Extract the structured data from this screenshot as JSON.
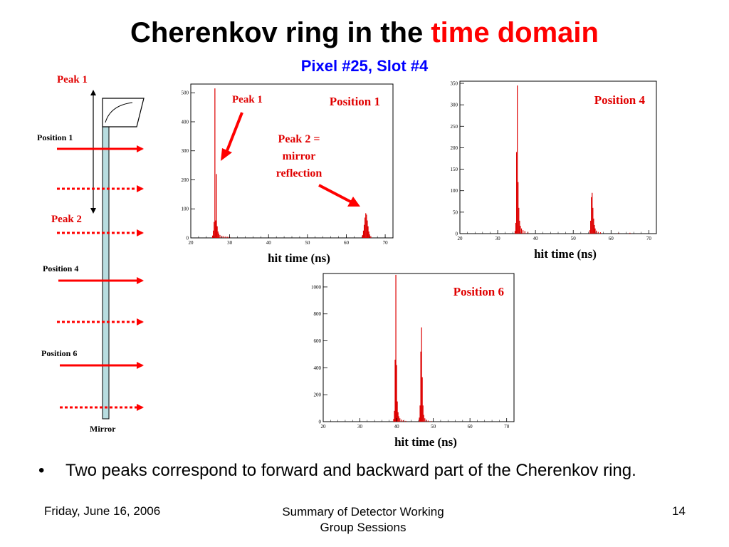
{
  "slide": {
    "title_main": "Cherenkov ring in the ",
    "title_highlight": "time domain",
    "subtitle": "Pixel #25, Slot #4",
    "bullet": "Two peaks correspond to forward and backward part of the Cherenkov ring.",
    "footer_date": "Friday, June 16, 2006",
    "footer_center_line1": "Summary of Detector Working",
    "footer_center_line2": "Group  Sessions",
    "page_number": "14"
  },
  "diagram": {
    "peak1_label": "Peak 1",
    "peak2_label": "Peak 2",
    "position1_label": "Position 1",
    "position4_label": "Position 4",
    "position6_label": "Position 6",
    "mirror_label": "Mirror"
  },
  "colors": {
    "accent_red": "#ff0000",
    "subtitle_blue": "#0000ff",
    "bar_fill": "#dd0000",
    "mirror_fill": "#b8dde0"
  },
  "chart_data": [
    {
      "type": "bar",
      "legend": "Position 1",
      "xlabel": "hit time (ns)",
      "xlim": [
        20,
        72
      ],
      "ylim": [
        0,
        530
      ],
      "xticks": [
        20,
        30,
        40,
        50,
        60,
        70
      ],
      "yticks": [
        0,
        100,
        200,
        300,
        400,
        500
      ],
      "annotations": [
        {
          "text": "Peak 1",
          "x": 26,
          "y": 520
        },
        {
          "text": "Peak 2 =",
          "text2": "mirror",
          "text3": "reflection",
          "x": 65,
          "y": 85
        }
      ],
      "x": [
        25.6,
        25.8,
        26.0,
        26.2,
        26.4,
        26.6,
        26.8,
        27.0,
        27.2,
        27.5,
        28.0,
        28.5,
        29.0,
        29.5,
        30.0,
        64.2,
        64.4,
        64.6,
        64.8,
        65.0,
        65.2,
        65.4,
        65.6,
        65.8,
        66.0,
        66.3
      ],
      "values": [
        8,
        25,
        55,
        515,
        60,
        220,
        40,
        22,
        15,
        10,
        7,
        6,
        5,
        4,
        3,
        10,
        25,
        45,
        70,
        85,
        80,
        60,
        40,
        22,
        12,
        6
      ]
    },
    {
      "type": "bar",
      "legend": "Position 4",
      "xlabel": "hit time (ns)",
      "xlim": [
        20,
        72
      ],
      "ylim": [
        0,
        355
      ],
      "xticks": [
        20,
        30,
        40,
        50,
        60,
        70
      ],
      "yticks": [
        0,
        50,
        100,
        150,
        200,
        250,
        300,
        350
      ],
      "x": [
        34.6,
        34.8,
        35.0,
        35.2,
        35.4,
        35.6,
        35.8,
        36.0,
        36.3,
        36.7,
        37.2,
        38.0,
        54.4,
        54.6,
        54.8,
        55.0,
        55.2,
        55.4,
        55.6,
        55.8,
        56.1,
        56.6,
        57.2,
        62.0,
        65.0
      ],
      "values": [
        6,
        25,
        190,
        345,
        120,
        60,
        30,
        18,
        12,
        8,
        6,
        4,
        8,
        30,
        85,
        95,
        60,
        35,
        20,
        12,
        7,
        4,
        3,
        2,
        2
      ]
    },
    {
      "type": "bar",
      "legend": "Position 6",
      "xlabel": "hit time (ns)",
      "xlim": [
        20,
        72
      ],
      "ylim": [
        0,
        1100
      ],
      "xticks": [
        20,
        30,
        40,
        50,
        60,
        70
      ],
      "yticks": [
        0,
        200,
        400,
        600,
        800,
        1000
      ],
      "x": [
        39.2,
        39.4,
        39.6,
        39.8,
        40.0,
        40.2,
        40.4,
        40.6,
        40.9,
        41.3,
        41.8,
        42.5,
        46.2,
        46.4,
        46.6,
        46.8,
        47.0,
        47.2,
        47.4,
        47.7,
        48.1,
        48.6,
        49.5
      ],
      "values": [
        20,
        80,
        460,
        1090,
        420,
        150,
        70,
        40,
        25,
        15,
        10,
        6,
        30,
        120,
        520,
        700,
        330,
        120,
        50,
        25,
        14,
        8,
        4
      ]
    }
  ]
}
